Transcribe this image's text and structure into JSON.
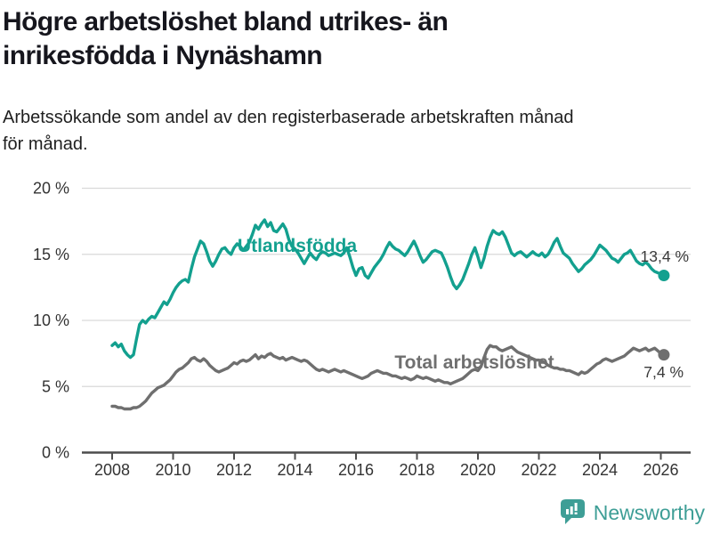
{
  "header": {
    "title_line1": "Högre arbetslöshet bland utrikes- än",
    "title_line2": "inrikesfödda i Nynäshamn",
    "subtitle_line1": "Arbetssökande som andel av den registerbaserade arbetskraften månad",
    "subtitle_line2": "för månad."
  },
  "chart_data": {
    "type": "line",
    "x_unit": "year-monthly",
    "x_start_year": 2008,
    "x_step_years": 0.1,
    "x_axis_ticks": [
      2008,
      2010,
      2012,
      2014,
      2016,
      2018,
      2020,
      2022,
      2024,
      2026
    ],
    "y_axis_ticks": [
      0,
      5,
      10,
      15,
      20
    ],
    "y_tick_suffix": " %",
    "ylim": [
      0,
      20
    ],
    "grid": "horizontal",
    "legend_position": "inline-labels",
    "colors": {
      "foreign_born": "#13a08f",
      "total": "#6f6f6f",
      "annotation": "#3a3a3a",
      "grid": "#d9d9d9",
      "axis": "#4d4d4d",
      "tick_label": "#333333"
    },
    "series": [
      {
        "name": "Utlandsfödda",
        "color": "#13a08f",
        "end_value": 13.4,
        "end_label": "13,4 %",
        "values": [
          8.1,
          8.3,
          8.0,
          8.2,
          7.7,
          7.4,
          7.2,
          7.4,
          8.6,
          9.7,
          10.0,
          9.8,
          10.1,
          10.3,
          10.2,
          10.6,
          11.0,
          11.4,
          11.2,
          11.6,
          12.1,
          12.5,
          12.8,
          13.0,
          13.1,
          12.9,
          13.9,
          14.8,
          15.4,
          16.0,
          15.8,
          15.2,
          14.5,
          14.1,
          14.5,
          15.0,
          15.4,
          15.5,
          15.2,
          15.0,
          15.5,
          15.8,
          15.6,
          15.3,
          15.6,
          15.9,
          16.5,
          17.2,
          16.9,
          17.3,
          17.6,
          17.1,
          17.4,
          16.8,
          16.7,
          17.0,
          17.3,
          16.9,
          16.1,
          15.6,
          15.4,
          15.1,
          14.7,
          14.3,
          14.7,
          15.1,
          14.8,
          14.6,
          15.0,
          15.2,
          15.1,
          14.9,
          15.0,
          15.1,
          15.0,
          14.9,
          15.1,
          15.5,
          14.8,
          14.0,
          13.4,
          13.9,
          14.0,
          13.4,
          13.2,
          13.6,
          14.0,
          14.3,
          14.6,
          15.0,
          15.5,
          15.9,
          15.6,
          15.4,
          15.3,
          15.1,
          14.9,
          15.2,
          15.6,
          16.0,
          15.5,
          14.9,
          14.4,
          14.6,
          14.9,
          15.2,
          15.3,
          15.2,
          15.1,
          14.6,
          14.0,
          13.3,
          12.7,
          12.4,
          12.7,
          13.1,
          13.7,
          14.3,
          15.0,
          15.5,
          14.8,
          14.0,
          14.7,
          15.6,
          16.3,
          16.8,
          16.6,
          16.5,
          16.7,
          16.3,
          15.7,
          15.1,
          14.9,
          15.1,
          15.2,
          15.0,
          14.8,
          15.0,
          15.2,
          15.0,
          14.9,
          15.1,
          14.8,
          15.0,
          15.4,
          15.9,
          16.2,
          15.6,
          15.1,
          14.9,
          14.7,
          14.3,
          14.0,
          13.7,
          13.9,
          14.2,
          14.4,
          14.6,
          14.9,
          15.3,
          15.7,
          15.5,
          15.3,
          15.0,
          14.7,
          14.6,
          14.4,
          14.7,
          15.0,
          15.1,
          15.3,
          14.9,
          14.5,
          14.3,
          14.2,
          14.4,
          14.2,
          13.9,
          13.7,
          13.6,
          13.5,
          13.4
        ]
      },
      {
        "name": "Total arbetslöshet",
        "color": "#6f6f6f",
        "end_value": 7.4,
        "end_label": "7,4 %",
        "values": [
          3.5,
          3.5,
          3.4,
          3.4,
          3.3,
          3.3,
          3.3,
          3.4,
          3.4,
          3.5,
          3.7,
          3.9,
          4.2,
          4.5,
          4.7,
          4.9,
          5.0,
          5.1,
          5.3,
          5.5,
          5.8,
          6.1,
          6.3,
          6.4,
          6.6,
          6.8,
          7.1,
          7.2,
          7.0,
          6.9,
          7.1,
          6.9,
          6.6,
          6.4,
          6.2,
          6.1,
          6.2,
          6.3,
          6.4,
          6.6,
          6.8,
          6.7,
          6.9,
          7.0,
          6.9,
          7.0,
          7.2,
          7.4,
          7.1,
          7.3,
          7.2,
          7.4,
          7.5,
          7.3,
          7.2,
          7.1,
          7.2,
          7.0,
          7.1,
          7.2,
          7.1,
          7.0,
          6.9,
          7.0,
          6.9,
          6.7,
          6.5,
          6.3,
          6.2,
          6.3,
          6.2,
          6.1,
          6.2,
          6.3,
          6.2,
          6.1,
          6.2,
          6.1,
          6.0,
          5.9,
          5.8,
          5.7,
          5.6,
          5.7,
          5.8,
          6.0,
          6.1,
          6.2,
          6.1,
          6.0,
          6.0,
          5.9,
          5.8,
          5.8,
          5.7,
          5.6,
          5.7,
          5.6,
          5.5,
          5.6,
          5.8,
          5.7,
          5.6,
          5.7,
          5.6,
          5.5,
          5.4,
          5.5,
          5.4,
          5.3,
          5.3,
          5.2,
          5.3,
          5.4,
          5.5,
          5.6,
          5.8,
          6.0,
          6.2,
          6.3,
          6.2,
          6.5,
          7.2,
          7.8,
          8.1,
          8.0,
          8.0,
          7.8,
          7.7,
          7.8,
          7.9,
          8.0,
          7.8,
          7.6,
          7.5,
          7.4,
          7.3,
          7.2,
          7.1,
          7.0,
          7.0,
          6.9,
          6.8,
          6.6,
          6.5,
          6.4,
          6.4,
          6.3,
          6.3,
          6.2,
          6.2,
          6.1,
          6.0,
          5.9,
          6.1,
          6.0,
          6.1,
          6.3,
          6.5,
          6.7,
          6.8,
          7.0,
          7.1,
          7.0,
          6.9,
          7.0,
          7.1,
          7.2,
          7.3,
          7.5,
          7.7,
          7.9,
          7.8,
          7.7,
          7.8,
          7.9,
          7.7,
          7.8,
          7.9,
          7.7,
          7.5,
          7.4
        ]
      }
    ]
  },
  "footer": {
    "brand": "Newsworthy",
    "brand_color": "#3e9e96",
    "logo_icon": "bar-chart-speech-bubble-icon"
  }
}
